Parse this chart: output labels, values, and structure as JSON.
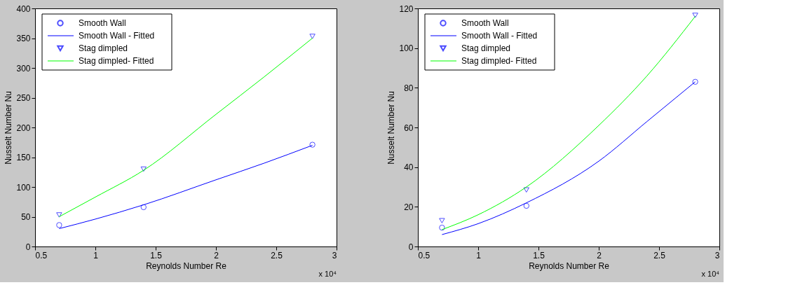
{
  "chart_data": [
    {
      "type": "scatter",
      "xlabel": "Reynolds Number Re",
      "ylabel": "Nusselt Number Nu",
      "xlim": [
        0.5,
        3
      ],
      "xticks": [
        0.5,
        1,
        1.5,
        2,
        2.5,
        3
      ],
      "ylim": [
        0,
        400
      ],
      "yticks": [
        0,
        50,
        100,
        150,
        200,
        250,
        300,
        350,
        400
      ],
      "grid": false,
      "legend": "top left",
      "annotations": [
        "x 10⁴"
      ],
      "series": [
        {
          "name": "Smooth Wall",
          "marker": "circle",
          "color": "#0000ff",
          "x": [
            0.7,
            1.4,
            2.8
          ],
          "values": [
            36,
            66,
            171
          ]
        },
        {
          "name": "Smooth Wall - Fitted",
          "type": "line",
          "marker": "none",
          "color": "#0000ff",
          "x": [
            0.7,
            1.0,
            1.4,
            2.0,
            2.4,
            2.8
          ],
          "values": [
            30,
            46,
            70,
            112,
            140,
            170
          ]
        },
        {
          "name": "Stag dimpled",
          "marker": "triangle",
          "color": "#0000ff",
          "x": [
            0.7,
            1.4,
            2.8
          ],
          "values": [
            53,
            130,
            353
          ]
        },
        {
          "name": "Stag dimpled- Fitted",
          "type": "line",
          "marker": "none",
          "color": "#00ff00",
          "x": [
            0.7,
            1.0,
            1.4,
            2.0,
            2.4,
            2.8
          ],
          "values": [
            50,
            83,
            128,
            222,
            285,
            350
          ]
        }
      ]
    },
    {
      "type": "scatter",
      "xlabel": "Reynolds Number Re",
      "ylabel": "Nusselt Number Nu",
      "xlim": [
        0.5,
        3
      ],
      "xticks": [
        0.5,
        1,
        1.5,
        2,
        2.5,
        3
      ],
      "ylim": [
        0,
        120
      ],
      "yticks": [
        0,
        20,
        40,
        60,
        80,
        100,
        120
      ],
      "grid": false,
      "legend": "top left",
      "annotations": [
        "x 10⁴"
      ],
      "series": [
        {
          "name": "Smooth Wall",
          "marker": "circle",
          "color": "#0000ff",
          "x": [
            0.7,
            1.4,
            2.8
          ],
          "values": [
            9.5,
            20.5,
            83
          ]
        },
        {
          "name": "Smooth Wall - Fitted",
          "type": "line",
          "marker": "none",
          "color": "#0000ff",
          "x": [
            0.7,
            1.0,
            1.4,
            2.0,
            2.4,
            2.8
          ],
          "values": [
            6,
            11.5,
            22,
            43,
            63,
            83
          ]
        },
        {
          "name": "Stag dimpled",
          "marker": "triangle",
          "color": "#0000ff",
          "x": [
            0.7,
            1.4,
            2.8
          ],
          "values": [
            13,
            28.5,
            116.5
          ]
        },
        {
          "name": "Stag dimpled- Fitted",
          "type": "line",
          "marker": "none",
          "color": "#00ff00",
          "x": [
            0.7,
            1.0,
            1.4,
            2.0,
            2.4,
            2.8
          ],
          "values": [
            8.5,
            16,
            30,
            61,
            86,
            116
          ]
        }
      ]
    }
  ]
}
